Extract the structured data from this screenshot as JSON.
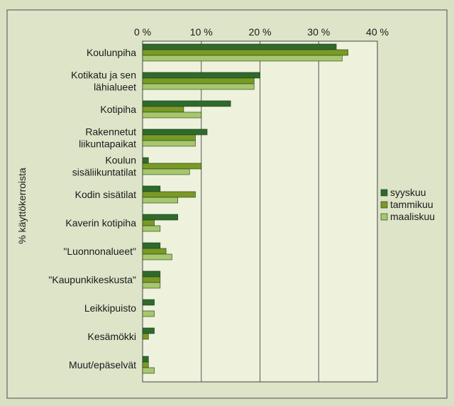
{
  "chart_data": {
    "type": "bar",
    "orientation": "horizontal",
    "title": "",
    "xlabel": "",
    "ylabel": "% käyttökerroista",
    "xlim": [
      0,
      40
    ],
    "x_ticks": [
      0,
      10,
      20,
      30,
      40
    ],
    "x_tick_labels": [
      "0 %",
      "10 %",
      "20 %",
      "30 %",
      "40 %"
    ],
    "x_axis_position": "top",
    "grid": "vertical",
    "legend_position": "right",
    "categories": [
      "Koulunpiha",
      "Kotikatu ja sen\nlähialueet",
      "Kotipiha",
      "Rakennetut\nliikuntapaikat",
      "Koulun\nsisäliikuntatilat",
      "Kodin sisätilat",
      "Kaverin kotipiha",
      "\"Luonnonalueet\"",
      "\"Kaupunkikeskusta\"",
      "Leikkipuisto",
      "Kesämökki",
      "Muut/epäselvät"
    ],
    "series": [
      {
        "name": "syyskuu",
        "color": "#2f6a2c",
        "values": [
          33,
          20,
          15,
          11,
          1,
          3,
          6,
          3,
          3,
          2,
          2,
          1
        ]
      },
      {
        "name": "tammikuu",
        "color": "#7a9a26",
        "values": [
          35,
          19,
          7,
          9,
          10,
          9,
          2,
          4,
          3,
          0,
          1,
          1
        ]
      },
      {
        "name": "maaliskuu",
        "color": "#a6c76e",
        "values": [
          34,
          19,
          10,
          9,
          8,
          6,
          3,
          5,
          3,
          2,
          0,
          2
        ]
      }
    ]
  }
}
